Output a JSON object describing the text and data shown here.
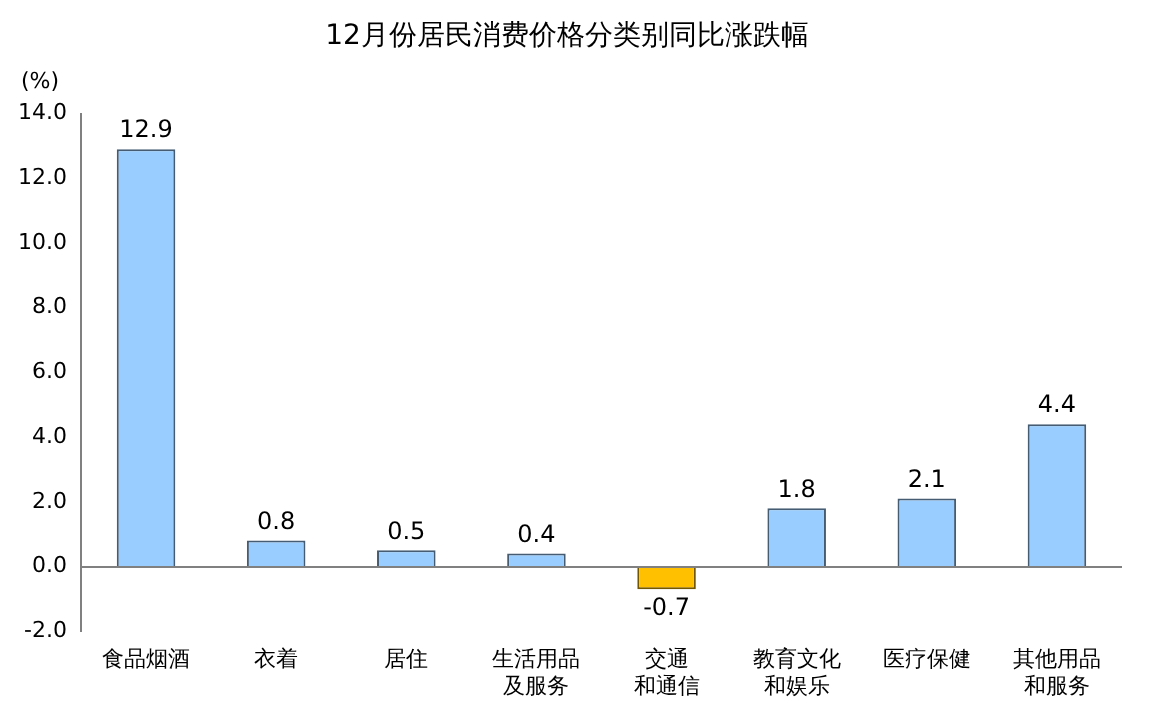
{
  "chart_data": {
    "type": "bar",
    "title": "12月份居民消费价格分类别同比涨跌幅",
    "ylabel": "(%)",
    "categories": [
      "食品烟酒",
      "衣着",
      "居住",
      "生活用品及服务",
      "交通和通信",
      "教育文化和娱乐",
      "医疗保健",
      "其他用品和服务"
    ],
    "ref_lines": [
      {
        "axis": "y",
        "value": 0,
        "color": "#808080"
      }
    ],
    "values": [
      12.9,
      0.8,
      0.5,
      0.4,
      -0.7,
      1.8,
      2.1,
      4.4
    ],
    "colors": [
      "#99ccff",
      "#99ccff",
      "#99ccff",
      "#99ccff",
      "#ffc000",
      "#99ccff",
      "#99ccff",
      "#99ccff"
    ],
    "ylim": [
      -2,
      14
    ],
    "yticks": [
      {
        "value": -2,
        "label": "-2.0"
      },
      {
        "value": 0,
        "label": "0.0"
      },
      {
        "value": 2,
        "label": "2.0"
      },
      {
        "value": 4,
        "label": "4.0"
      },
      {
        "value": 6,
        "label": "6.0"
      },
      {
        "value": 8,
        "label": "8.0"
      },
      {
        "value": 10,
        "label": "10.0"
      },
      {
        "value": 12,
        "label": "12.0"
      },
      {
        "value": 14,
        "label": "14.0"
      }
    ],
    "grid": false,
    "data_labels": true,
    "legend": false
  }
}
